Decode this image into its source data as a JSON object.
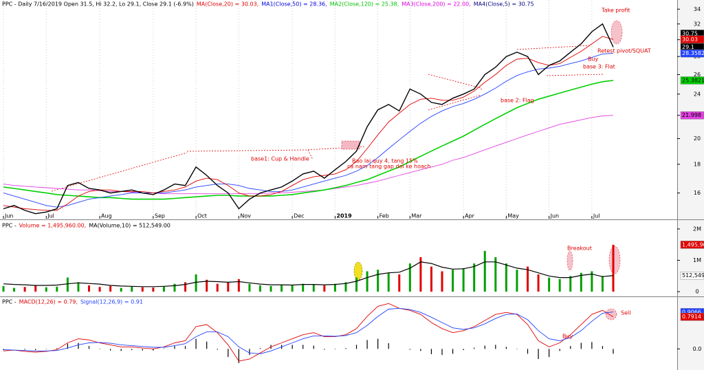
{
  "chart_data": [
    {
      "type": "line",
      "log_scale": true,
      "title_parts": [
        {
          "text": "PPC - Daily 7/16/2019 Open 31.5, Hi 32.2, Lo 29.1, Close 29.1 (-6.9%)",
          "color": "#000000"
        },
        {
          "text": "MA(Close,20) = 30.03,",
          "color": "#e00000"
        },
        {
          "text": "MA1(Close,50) = 28.36,",
          "color": "#0000e0"
        },
        {
          "text": "MA2(Close,120) = 25.38,",
          "color": "#00c000"
        },
        {
          "text": "MA3(Close,200) = 22.00,",
          "color": "#e000e0"
        },
        {
          "text": "MA4(Close,5) = 30.75",
          "color": "#000080"
        }
      ],
      "categories": [
        "Jun",
        null,
        null,
        null,
        "Jul",
        null,
        null,
        null,
        null,
        "Aug",
        null,
        null,
        null,
        null,
        "Sep",
        null,
        null,
        null,
        "Oct",
        null,
        null,
        null,
        "Nov",
        null,
        null,
        null,
        null,
        "Dec",
        null,
        null,
        null,
        "2019",
        null,
        null,
        null,
        "Feb",
        null,
        null,
        "Mar",
        null,
        null,
        null,
        null,
        "Apr",
        null,
        null,
        null,
        "May",
        null,
        null,
        null,
        "Jun",
        null,
        null,
        null,
        "Jul",
        null,
        null
      ],
      "series": [
        {
          "color": "#000000",
          "values": [
            15.0,
            15.2,
            14.9,
            14.7,
            14.8,
            15.0,
            16.5,
            16.7,
            16.3,
            16.2,
            16.0,
            16.1,
            16.2,
            16.0,
            15.9,
            16.2,
            16.6,
            16.5,
            17.8,
            17.2,
            16.5,
            16.0,
            15.0,
            15.6,
            16.0,
            16.2,
            16.4,
            16.8,
            17.3,
            17.5,
            17.0,
            17.6,
            18.2,
            19.0,
            21.0,
            22.5,
            23.0,
            22.4,
            24.5,
            24.0,
            23.2,
            23.0,
            23.6,
            24.0,
            24.5,
            26.0,
            26.8,
            28.0,
            28.5,
            28.0,
            26.0,
            27.0,
            27.5,
            28.5,
            29.5,
            31.0,
            32.0,
            29.1
          ]
        },
        {
          "color": "#e00000",
          "values": [
            15.2,
            15.1,
            15.0,
            14.95,
            14.9,
            14.9,
            15.3,
            15.8,
            16.1,
            16.2,
            16.2,
            16.1,
            16.1,
            16.1,
            16.0,
            16.1,
            16.2,
            16.4,
            16.8,
            17.0,
            16.9,
            16.5,
            16.0,
            15.8,
            15.8,
            15.9,
            16.1,
            16.5,
            16.9,
            17.1,
            17.2,
            17.3,
            17.6,
            18.2,
            19.2,
            20.3,
            21.4,
            22.2,
            23.0,
            23.5,
            23.6,
            23.4,
            23.4,
            23.7,
            24.3,
            25.2,
            26.0,
            27.0,
            27.7,
            27.8,
            27.3,
            27.0,
            27.2,
            27.9,
            28.6,
            29.5,
            30.4,
            30.03
          ]
        },
        {
          "color": "#2040ff",
          "values": [
            16.0,
            15.8,
            15.6,
            15.4,
            15.2,
            15.1,
            15.2,
            15.4,
            15.6,
            15.7,
            15.8,
            15.9,
            16.0,
            16.0,
            16.0,
            16.0,
            16.1,
            16.2,
            16.4,
            16.5,
            16.6,
            16.6,
            16.5,
            16.3,
            16.2,
            16.1,
            16.1,
            16.2,
            16.4,
            16.6,
            16.8,
            17.0,
            17.2,
            17.5,
            17.9,
            18.5,
            19.2,
            19.9,
            20.6,
            21.3,
            21.9,
            22.4,
            22.8,
            23.1,
            23.5,
            24.0,
            24.6,
            25.3,
            25.9,
            26.3,
            26.6,
            26.7,
            26.9,
            27.2,
            27.5,
            27.9,
            28.3,
            28.36
          ]
        },
        {
          "color": "#00d000",
          "values": [
            16.4,
            16.3,
            16.2,
            16.1,
            16.0,
            15.9,
            15.85,
            15.8,
            15.75,
            15.7,
            15.7,
            15.65,
            15.6,
            15.6,
            15.6,
            15.6,
            15.65,
            15.7,
            15.75,
            15.8,
            15.85,
            15.85,
            15.8,
            15.8,
            15.8,
            15.8,
            15.85,
            15.9,
            16.0,
            16.1,
            16.2,
            16.35,
            16.5,
            16.7,
            16.9,
            17.2,
            17.5,
            17.8,
            18.2,
            18.6,
            19.0,
            19.4,
            19.8,
            20.2,
            20.7,
            21.2,
            21.7,
            22.2,
            22.7,
            23.1,
            23.5,
            23.8,
            24.1,
            24.4,
            24.7,
            25.0,
            25.25,
            25.38
          ]
        },
        {
          "color": "#e040e0",
          "values": [
            16.6,
            16.5,
            16.45,
            16.4,
            16.35,
            16.3,
            16.25,
            16.2,
            16.2,
            16.15,
            16.1,
            16.1,
            16.05,
            16.0,
            16.0,
            15.95,
            15.95,
            15.95,
            15.95,
            15.95,
            15.95,
            15.95,
            15.95,
            15.95,
            15.95,
            16.0,
            16.0,
            16.05,
            16.1,
            16.15,
            16.2,
            16.3,
            16.4,
            16.5,
            16.65,
            16.8,
            17.0,
            17.2,
            17.4,
            17.6,
            17.8,
            18.0,
            18.3,
            18.5,
            18.8,
            19.1,
            19.4,
            19.7,
            20.0,
            20.3,
            20.6,
            20.9,
            21.2,
            21.4,
            21.6,
            21.8,
            21.95,
            22.0
          ]
        }
      ],
      "ylim": [
        14.4,
        35.3
      ],
      "yticks": [
        16,
        18,
        20,
        22,
        24,
        26,
        28,
        30,
        32,
        34
      ],
      "tags": [
        {
          "value": 30.75,
          "bg": "#000000",
          "fg": "#ffffff"
        },
        {
          "value": 30.03,
          "bg": "#e00000",
          "fg": "#ffffff"
        },
        {
          "value": 29.1,
          "bg": "#000000",
          "fg": "#ffffff"
        },
        {
          "value": 28.3582,
          "bg": "#2040ff",
          "fg": "#ffffff"
        },
        {
          "value": 25.3821,
          "bg": "#00d000",
          "fg": "#000000"
        },
        {
          "value": 21.998,
          "bg": "#e040e0",
          "fg": "#000000"
        }
      ],
      "annotations": [
        "Take profit",
        "Retest pivot/SQUAT",
        "Buy",
        "base 3: Flat",
        "base 2: Flag",
        "base1: Cup & Handle",
        "Bao lai quy 4, tang 15%",
        "ca nam tang gap doi ke hoach"
      ]
    },
    {
      "type": "bar",
      "title_parts": [
        {
          "text": "PPC -",
          "color": "#000000"
        },
        {
          "text": "Volume = 1,495,960.00,",
          "color": "#e00000"
        },
        {
          "text": "MA(Volume,10) = 512,549.00",
          "color": "#000000"
        }
      ],
      "up_color": "#00a000",
      "down_color": "#e00000",
      "values": [
        180000,
        120000,
        150000,
        200000,
        140000,
        160000,
        450000,
        300000,
        200000,
        150000,
        180000,
        120000,
        160000,
        140000,
        130000,
        170000,
        250000,
        300000,
        550000,
        380000,
        250000,
        300000,
        400000,
        250000,
        200000,
        180000,
        220000,
        200000,
        250000,
        230000,
        200000,
        250000,
        300000,
        450000,
        650000,
        700000,
        600000,
        550000,
        900000,
        1100000,
        800000,
        650000,
        700000,
        750000,
        900000,
        1300000,
        1100000,
        900000,
        700000,
        800000,
        550000,
        450000,
        400000,
        500000,
        600000,
        650000,
        500000,
        1495960
      ],
      "series": [
        {
          "color": "#000000",
          "values": [
            250000,
            230000,
            220000,
            200000,
            200000,
            210000,
            250000,
            280000,
            260000,
            240000,
            200000,
            180000,
            170000,
            160000,
            160000,
            170000,
            190000,
            230000,
            300000,
            330000,
            320000,
            300000,
            320000,
            280000,
            240000,
            220000,
            220000,
            210000,
            230000,
            230000,
            220000,
            230000,
            260000,
            330000,
            450000,
            550000,
            600000,
            620000,
            750000,
            950000,
            900000,
            780000,
            720000,
            730000,
            800000,
            950000,
            950000,
            850000,
            750000,
            700000,
            600000,
            500000,
            450000,
            450000,
            520000,
            560000,
            480000,
            512549
          ]
        }
      ],
      "ylim": [
        -130000,
        2240000
      ],
      "yticks": [
        {
          "value": 0,
          "label": "0"
        },
        {
          "value": 1000000,
          "label": "1M"
        },
        {
          "value": 2000000,
          "label": "2M"
        }
      ],
      "tags": [
        {
          "value": 1495960,
          "label": "1,495,960",
          "bg": "#e00000",
          "fg": "#ffffff"
        },
        {
          "value": 512549,
          "label": "512,549",
          "bg": "#ffffff",
          "fg": "#000000"
        }
      ],
      "annotations": [
        "Breakout"
      ]
    },
    {
      "type": "macd",
      "title_parts": [
        {
          "text": "PPC -",
          "color": "#000000"
        },
        {
          "text": "MACD(12,26) = 0.79,",
          "color": "#e00000"
        },
        {
          "text": "Signal(12,26,9) = 0.91",
          "color": "#2040ff"
        }
      ],
      "series": [
        {
          "color": "#e00000",
          "values": [
            -0.05,
            -0.03,
            -0.06,
            -0.08,
            -0.06,
            -0.02,
            0.15,
            0.25,
            0.22,
            0.15,
            0.1,
            0.05,
            0.05,
            0.02,
            0.0,
            0.05,
            0.15,
            0.2,
            0.55,
            0.6,
            0.4,
            0.1,
            -0.3,
            -0.25,
            -0.1,
            0.05,
            0.15,
            0.25,
            0.35,
            0.4,
            0.3,
            0.3,
            0.35,
            0.5,
            0.8,
            1.05,
            1.12,
            1.0,
            0.95,
            0.85,
            0.65,
            0.5,
            0.4,
            0.45,
            0.55,
            0.7,
            0.85,
            0.9,
            0.85,
            0.6,
            0.2,
            0.05,
            0.15,
            0.35,
            0.6,
            0.85,
            0.95,
            0.79
          ]
        },
        {
          "color": "#2040ff",
          "values": [
            -0.02,
            -0.03,
            -0.04,
            -0.05,
            -0.05,
            -0.04,
            0.02,
            0.1,
            0.15,
            0.16,
            0.14,
            0.1,
            0.08,
            0.06,
            0.04,
            0.04,
            0.08,
            0.13,
            0.3,
            0.42,
            0.42,
            0.3,
            0.05,
            -0.1,
            -0.12,
            -0.05,
            0.05,
            0.15,
            0.25,
            0.32,
            0.32,
            0.31,
            0.33,
            0.4,
            0.58,
            0.8,
            0.98,
            1.0,
            0.97,
            0.9,
            0.78,
            0.65,
            0.52,
            0.48,
            0.52,
            0.62,
            0.75,
            0.85,
            0.86,
            0.72,
            0.45,
            0.25,
            0.2,
            0.28,
            0.45,
            0.68,
            0.88,
            0.91
          ]
        }
      ],
      "histogram": {
        "color": "#000000",
        "values": [
          -0.03,
          0,
          -0.02,
          -0.03,
          -0.01,
          0.02,
          0.13,
          0.15,
          0.07,
          -0.01,
          -0.04,
          -0.05,
          -0.03,
          -0.04,
          -0.04,
          0.01,
          0.07,
          0.07,
          0.25,
          0.18,
          -0.02,
          -0.2,
          -0.35,
          -0.15,
          0.02,
          0.1,
          0.1,
          0.1,
          0.1,
          0.08,
          -0.02,
          -0.01,
          0.02,
          0.1,
          0.22,
          0.25,
          0.14,
          0,
          -0.02,
          -0.05,
          -0.13,
          -0.15,
          -0.12,
          -0.03,
          0.03,
          0.08,
          0.1,
          0.05,
          -0.01,
          -0.12,
          -0.25,
          -0.2,
          -0.05,
          0.07,
          0.15,
          0.17,
          0.07,
          -0.12
        ]
      },
      "ylim": [
        -0.52,
        1.26
      ],
      "yticks": [
        {
          "value": 0,
          "label": "0.0"
        }
      ],
      "tags": [
        {
          "value": 0.9066,
          "bg": "#2040ff",
          "fg": "#ffffff"
        },
        {
          "value": 0.7914,
          "bg": "#e00000",
          "fg": "#ffffff"
        }
      ],
      "annotations": [
        "Buy",
        "Sell"
      ]
    }
  ]
}
